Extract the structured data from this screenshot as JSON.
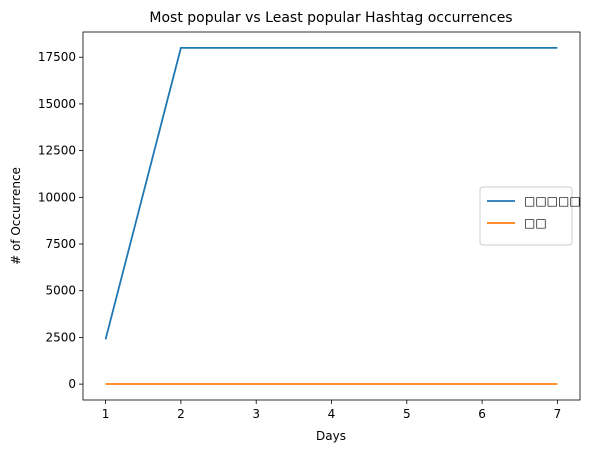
{
  "chart_data": {
    "type": "line",
    "title": "Most popular vs Least popular Hashtag occurrences",
    "xlabel": "Days",
    "ylabel": "# of Occurrence",
    "x": [
      1,
      2,
      3,
      4,
      5,
      6,
      7
    ],
    "xlim": [
      0.7,
      7.3
    ],
    "ylim": [
      -850,
      18850
    ],
    "xticks": [
      1,
      2,
      3,
      4,
      5,
      6,
      7
    ],
    "yticks": [
      0,
      2500,
      5000,
      7500,
      10000,
      12500,
      15000,
      17500
    ],
    "series": [
      {
        "name": "□□□□□",
        "color": "#1f77b4",
        "values": [
          2400,
          18000,
          18000,
          18000,
          18000,
          18000,
          18000
        ]
      },
      {
        "name": "□□",
        "color": "#ff7f0e",
        "values": [
          5,
          5,
          5,
          5,
          5,
          5,
          5
        ]
      }
    ],
    "legend_position": "center-right",
    "grid": false
  }
}
